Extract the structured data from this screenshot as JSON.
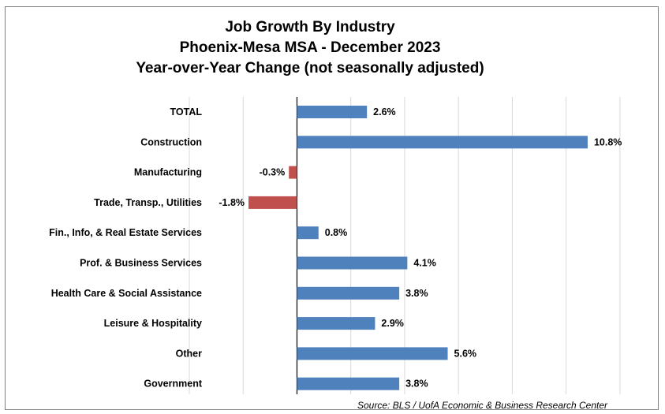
{
  "chart_data": {
    "type": "bar",
    "orientation": "horizontal",
    "title_lines": [
      "Job Growth By Industry",
      "Phoenix-Mesa MSA - December 2023",
      "Year-over-Year Change (not seasonally adjusted)"
    ],
    "categories": [
      "TOTAL",
      "Construction",
      "Manufacturing",
      "Trade, Transp., Utilities",
      "Fin., Info, & Real Estate Services",
      "Prof. & Business Services",
      "Health Care & Social Assistance",
      "Leisure & Hospitality",
      "Other",
      "Government"
    ],
    "values": [
      2.6,
      10.8,
      -0.3,
      -1.8,
      0.8,
      4.1,
      3.8,
      2.9,
      5.6,
      3.8
    ],
    "data_labels": [
      "2.6%",
      "10.8%",
      "-0.3%",
      "-1.8%",
      "0.8%",
      "4.1%",
      "3.8%",
      "2.9%",
      "5.6%",
      "3.8%"
    ],
    "xlim": [
      -4,
      13
    ],
    "gridlines": true,
    "colors": {
      "positive": "#4f81bd",
      "negative": "#c0504d",
      "grid": "#d9d9d9",
      "axis": "#000000"
    },
    "source": "Source: BLS / UofA Economic & Business Research Center"
  }
}
